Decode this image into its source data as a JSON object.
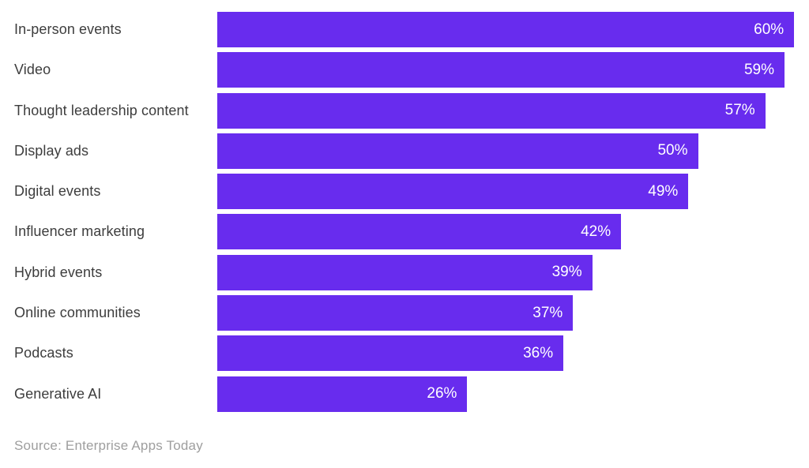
{
  "chart_data": {
    "type": "bar",
    "orientation": "horizontal",
    "title": "",
    "xlabel": "",
    "ylabel": "",
    "xlim": [
      0,
      60
    ],
    "grid": false,
    "legend": false,
    "categories": [
      "In-person events",
      "Video",
      "Thought leadership content",
      "Display ads",
      "Digital events",
      "Influencer marketing",
      "Hybrid events",
      "Online communities",
      "Podcasts",
      "Generative AI"
    ],
    "values": [
      60,
      59,
      57,
      50,
      49,
      42,
      39,
      37,
      36,
      26
    ],
    "value_suffix": "%",
    "data_labels": [
      "60%",
      "59%",
      "57%",
      "50%",
      "49%",
      "42%",
      "39%",
      "37%",
      "36%",
      "26%"
    ],
    "source": "Source: Enterprise Apps Today",
    "colors": {
      "bar": "#682CEE",
      "value_label": "#ffffff",
      "category_label": "#3d3d3d",
      "source_text": "#9e9e9e",
      "background": "#ffffff"
    }
  }
}
